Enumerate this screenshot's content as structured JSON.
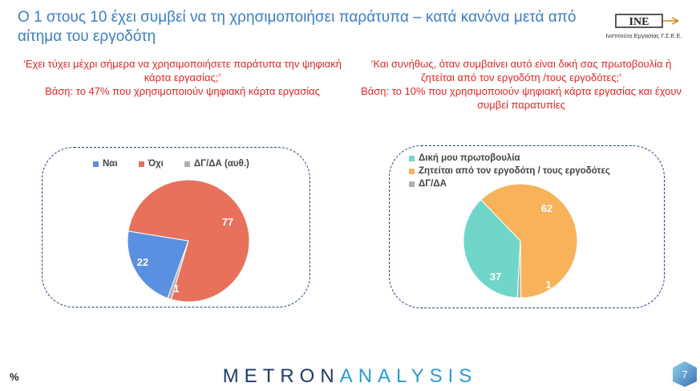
{
  "title": "Ο 1 στους 10 έχει συμβεί να τη χρησιμοποιήσει παράτυπα – κατά κανόνα μετά από αίτημα του εργοδότη",
  "logo": {
    "mark": "INE",
    "subtitle": "Ινστιτούτο Εργασίας Γ.Σ.Ε.Ε."
  },
  "left": {
    "question": "‘Εχει τύχει μέχρι σήμερα να χρησιμοποιήσετε παράτυπα την ψηφιακή κάρτα εργασίας;’",
    "base": "Βάση: το 47% που χρησιμοποιούν ψηφιακή κάρτα εργασίας"
  },
  "right": {
    "question": "‘Και συνήθως, όταν συμβαίνει αυτό είναι δική σας πρωτοβουλία ή ζητείται από τον εργοδότη /τους εργοδότες;’",
    "base": "Βάση: το 10% που χρησιμοποιούν ψηφιακή κάρτα εργασίας και έχουν συμβεί παρατυπίες"
  },
  "chart_data": [
    {
      "type": "pie",
      "legend_position": "top",
      "slices": [
        {
          "label": "Ναι",
          "value": 22,
          "color": "#5b8fe0"
        },
        {
          "label": "Όχι",
          "value": 77,
          "color": "#e8715c"
        },
        {
          "label": "ΔΓ/ΔΑ (αυθ.)",
          "value": 1,
          "color": "#b0b0b0"
        }
      ]
    },
    {
      "type": "pie",
      "legend_position": "top-left",
      "slices": [
        {
          "label": "Δική μου πρωτοβουλία",
          "value": 37,
          "color": "#6fd6c9"
        },
        {
          "label": "Ζητείται από τον εργοδότη / τους εργοδότες",
          "value": 62,
          "color": "#f7b25a"
        },
        {
          "label": "ΔΓ/ΔΑ",
          "value": 1,
          "color": "#b0b0b0"
        }
      ]
    }
  ],
  "footer": {
    "brand_a": "METRON",
    "brand_b": "ANALYSIS"
  },
  "unit_note": "%",
  "page_number": "7"
}
